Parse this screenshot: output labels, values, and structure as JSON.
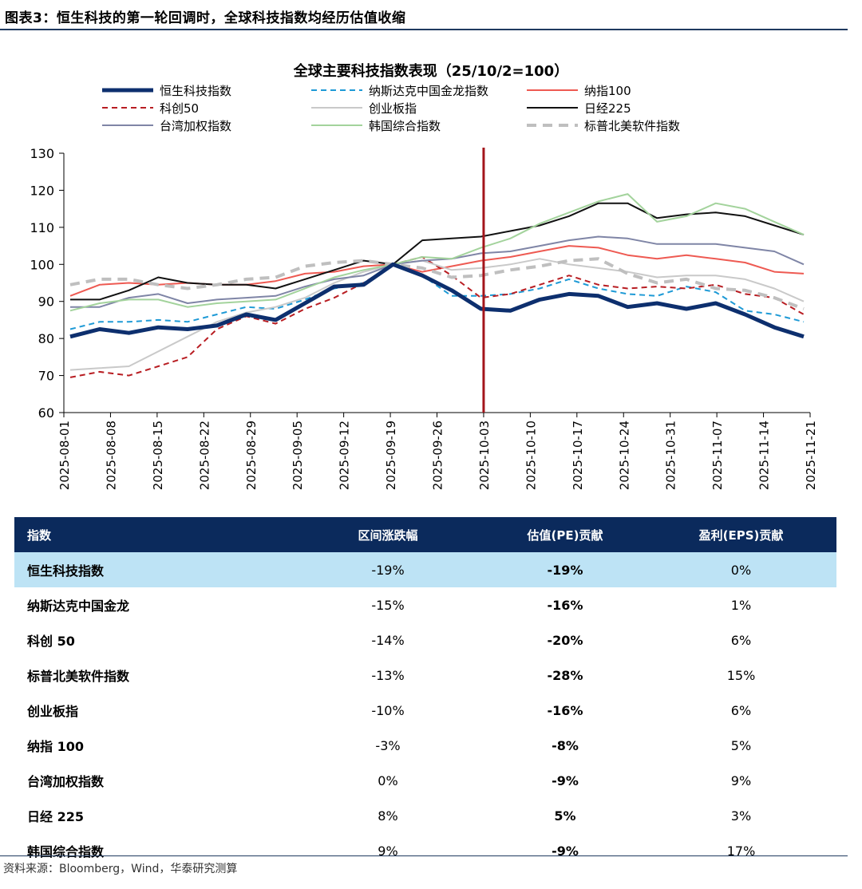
{
  "figure_title": "图表3：恒生科技的第一轮回调时，全球科技指数均经历估值收缩",
  "source": "资料来源：Bloomberg，Wind，华泰研究测算",
  "chart_data": {
    "type": "line",
    "title": "全球主要科技指数表现（25/10/2=100）",
    "ylim": [
      60,
      130
    ],
    "yticks": [
      60,
      70,
      80,
      90,
      100,
      110,
      120,
      130
    ],
    "xticks": [
      "2025-08-01",
      "2025-08-08",
      "2025-08-15",
      "2025-08-22",
      "2025-08-29",
      "2025-09-05",
      "2025-09-12",
      "2025-09-19",
      "2025-09-26",
      "2025-10-03",
      "2025-10-10",
      "2025-10-17",
      "2025-10-24",
      "2025-10-31",
      "2025-11-07",
      "2025-11-14",
      "2025-11-21"
    ],
    "marker_line": "2025-10-03",
    "legend_position": "top",
    "series": [
      {
        "name": "恒生科技指数",
        "color": "#0d2f6e",
        "style": "solid-thick",
        "values": [
          80.5,
          82.5,
          81.5,
          83,
          82.5,
          83.5,
          86.5,
          85,
          89.5,
          94,
          94.5,
          100,
          97,
          93,
          88,
          87.5,
          90.5,
          92,
          91.5,
          88.5,
          89.5,
          88,
          89.5,
          86.5,
          83,
          80.5
        ]
      },
      {
        "name": "纳斯达克中国金龙指数",
        "color": "#1e9ad6",
        "style": "dash",
        "values": [
          82.5,
          84.5,
          84.5,
          85,
          84.5,
          86.5,
          88.5,
          88,
          90.5,
          93.5,
          95,
          100,
          97,
          91.5,
          91.5,
          92,
          93.5,
          96,
          93.5,
          92,
          91.5,
          94,
          92.5,
          87.5,
          86.5,
          84.5
        ]
      },
      {
        "name": "纳指100",
        "color": "#ee5a52",
        "style": "solid",
        "values": [
          91.5,
          94.5,
          95,
          94.5,
          95,
          94.5,
          94.5,
          95.5,
          97.5,
          98,
          99.5,
          100,
          98,
          99.5,
          101,
          102,
          103.5,
          105,
          104.5,
          102.5,
          101.5,
          102.5,
          101.5,
          100.5,
          98,
          97.5
        ]
      },
      {
        "name": "科创50",
        "color": "#b81d22",
        "style": "dash",
        "values": [
          69.5,
          71,
          70,
          72.5,
          75,
          82.5,
          86,
          84,
          88,
          91,
          95,
          100,
          102,
          97,
          91,
          92,
          94.5,
          97,
          94.5,
          93.5,
          94,
          93.5,
          94.5,
          92,
          91,
          86.5
        ]
      },
      {
        "name": "创业板指",
        "color": "#c9c9c9",
        "style": "solid",
        "values": [
          71.5,
          72,
          72.5,
          76.5,
          80.5,
          84.5,
          87,
          88.5,
          91,
          95,
          98,
          100,
          101,
          98.5,
          99,
          100,
          101.5,
          100,
          99,
          98,
          96.5,
          97,
          97,
          96,
          93.5,
          90
        ]
      },
      {
        "name": "日经225",
        "color": "#111111",
        "style": "solid",
        "values": [
          90.5,
          90.5,
          93,
          96.5,
          95,
          94.5,
          94.5,
          93.5,
          96,
          98.5,
          101,
          100,
          106.5,
          107,
          107.5,
          109,
          110.5,
          113,
          116.5,
          116.5,
          112.5,
          113.5,
          114,
          113,
          110.5,
          108
        ]
      },
      {
        "name": "台湾加权指数",
        "color": "#7f85a6",
        "style": "solid",
        "values": [
          88.5,
          88.5,
          91,
          92,
          89.5,
          90.5,
          91,
          91.5,
          94,
          96,
          97,
          100,
          101,
          101.5,
          103,
          103.5,
          105,
          106.5,
          107.5,
          107,
          105.5,
          105.5,
          105.5,
          104.5,
          103.5,
          100
        ]
      },
      {
        "name": "韩国综合指数",
        "color": "#a3d39c",
        "style": "solid",
        "values": [
          87.5,
          89.5,
          90.5,
          90.5,
          88.5,
          89.5,
          90,
          90.5,
          93.5,
          96.5,
          98.5,
          100,
          102,
          101.5,
          104.5,
          107,
          111,
          114,
          117,
          119,
          111.5,
          113,
          116.5,
          115,
          111.5,
          108
        ]
      },
      {
        "name": "标普北美软件指数",
        "color": "#bfbfbf",
        "style": "dash-thick",
        "values": [
          94.5,
          96,
          96,
          94.5,
          93.5,
          94.5,
          96,
          96.5,
          99.5,
          100.5,
          101,
          100,
          99,
          96.5,
          97,
          98.5,
          99.5,
          101,
          101.5,
          97.5,
          95,
          96,
          93.5,
          93,
          91,
          88
        ]
      }
    ]
  },
  "table": {
    "headers": [
      "指数",
      "区间涨跌幅",
      "估值(PE)贡献",
      "盈利(EPS)贡献"
    ],
    "rows": [
      [
        "恒生科技指数",
        "-19%",
        "-19%",
        "0%"
      ],
      [
        "纳斯达克中国金龙",
        "-15%",
        "-16%",
        "1%"
      ],
      [
        "科创 50",
        "-14%",
        "-20%",
        "6%"
      ],
      [
        "标普北美软件指数",
        "-13%",
        "-28%",
        "15%"
      ],
      [
        "创业板指",
        "-10%",
        "-16%",
        "6%"
      ],
      [
        "纳指 100",
        "-3%",
        "-8%",
        "5%"
      ],
      [
        "台湾加权指数",
        "0%",
        "-9%",
        "9%"
      ],
      [
        "日经 225",
        "8%",
        "5%",
        "3%"
      ],
      [
        "韩国综合指数",
        "9%",
        "-9%",
        "17%"
      ]
    ],
    "highlight_row": 0
  }
}
